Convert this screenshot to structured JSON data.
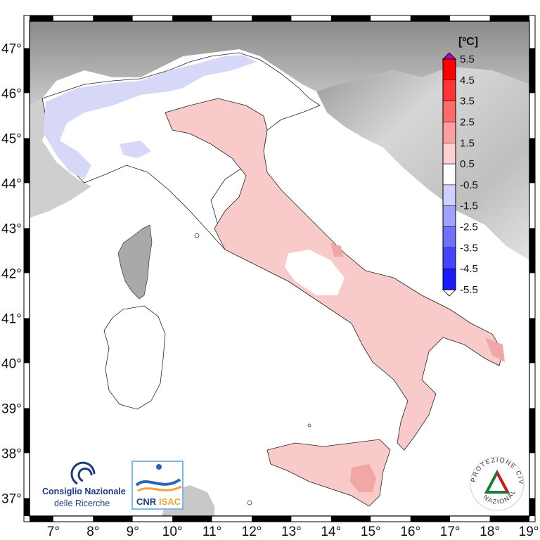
{
  "map": {
    "lon_labels": [
      "7°",
      "8°",
      "9°",
      "10°",
      "11°",
      "12°",
      "13°",
      "14°",
      "15°",
      "16°",
      "17°",
      "18°",
      "19°"
    ],
    "lat_labels": [
      "47°",
      "46°",
      "45°",
      "44°",
      "43°",
      "42°",
      "41°",
      "40°",
      "39°",
      "38°",
      "37°"
    ],
    "lon_range": [
      6.4,
      19.0
    ],
    "lat_range": [
      36.6,
      47.6
    ],
    "colors": {
      "land_anomaly_main": "#f9caca",
      "anomaly_warm_spot": "#f2a7a7",
      "anomaly_neutral": "#ffffff",
      "anomaly_cool": "#d7d8f8",
      "relief_light": "#e8e8e8",
      "relief_dark": "#8e8e8e"
    }
  },
  "colorbar": {
    "title": "[ºC]",
    "labels": [
      "5.5",
      "4.5",
      "3.5",
      "2.5",
      "1.5",
      "0.5",
      "-0.5",
      "-1.5",
      "-2.5",
      "-3.5",
      "-4.5",
      "-5.5"
    ],
    "colors": [
      "#ff0000",
      "#ff3535",
      "#ff6a6a",
      "#ff9f9f",
      "#ffd0d0",
      "#ffffff",
      "#d0d0ff",
      "#a0a0ff",
      "#7070ff",
      "#4545ff",
      "#1a1aff"
    ],
    "over_color": "#b000b0",
    "under_color": "#ffffff"
  },
  "logos": {
    "cnr_line1": "Consiglio Nazionale",
    "cnr_line2": "delle Ricerche",
    "isac_cnr": "CNR",
    "isac_isac": "ISAC",
    "protezione_top": "PROTEZIONE CIVILE",
    "protezione_bottom": "NAZIONALE"
  }
}
